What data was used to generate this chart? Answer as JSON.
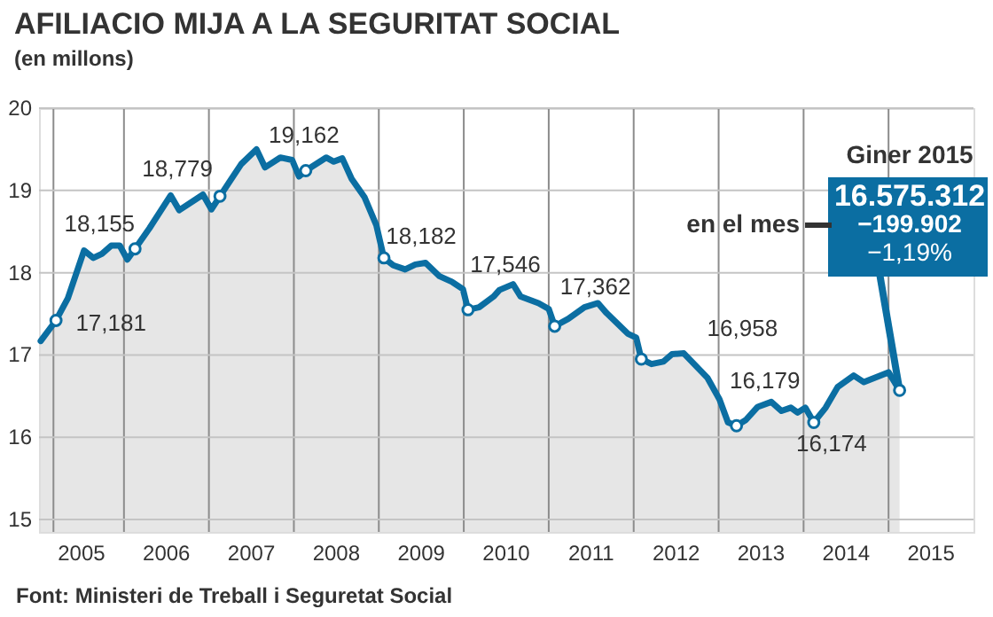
{
  "chart_data": {
    "type": "area",
    "title": "AFILIACIO MIJA A LA SEGURITAT SOCIAL",
    "subtitle": "(en millons)",
    "x": [
      2005.02,
      2005.2,
      2005.34,
      2005.53,
      2005.64,
      2005.74,
      2005.85,
      2005.95,
      2006.04,
      2006.13,
      2006.3,
      2006.55,
      2006.65,
      2006.93,
      2007.03,
      2007.13,
      2007.38,
      2007.56,
      2007.66,
      2007.84,
      2007.98,
      2008.06,
      2008.14,
      2008.38,
      2008.47,
      2008.57,
      2008.68,
      2008.83,
      2008.97,
      2009.06,
      2009.17,
      2009.31,
      2009.43,
      2009.55,
      2009.71,
      2009.86,
      2009.99,
      2010.05,
      2010.18,
      2010.35,
      2010.42,
      2010.58,
      2010.67,
      2010.88,
      2011.0,
      2011.07,
      2011.23,
      2011.42,
      2011.58,
      2011.68,
      2011.93,
      2012.03,
      2012.09,
      2012.21,
      2012.35,
      2012.45,
      2012.59,
      2012.87,
      2013.01,
      2013.11,
      2013.21,
      2013.32,
      2013.46,
      2013.62,
      2013.74,
      2013.85,
      2013.93,
      2014.02,
      2014.12,
      2014.26,
      2014.4,
      2014.59,
      2014.71,
      2015.0,
      2015.13
    ],
    "series": [
      {
        "color": "#0b6ea2",
        "values": [
          17.17,
          17.42,
          17.69,
          18.27,
          18.18,
          18.23,
          18.33,
          18.33,
          18.16,
          18.29,
          18.54,
          18.94,
          18.76,
          18.95,
          18.77,
          18.93,
          19.32,
          19.5,
          19.28,
          19.4,
          19.37,
          19.17,
          19.24,
          19.4,
          19.35,
          19.39,
          19.14,
          18.92,
          18.58,
          18.18,
          18.09,
          18.04,
          18.1,
          18.12,
          17.96,
          17.89,
          17.8,
          17.55,
          17.58,
          17.71,
          17.79,
          17.86,
          17.71,
          17.63,
          17.56,
          17.35,
          17.44,
          17.58,
          17.63,
          17.51,
          17.26,
          17.21,
          16.95,
          16.89,
          16.92,
          17.01,
          17.02,
          16.72,
          16.46,
          16.18,
          16.14,
          16.21,
          16.37,
          16.43,
          16.32,
          16.36,
          16.3,
          16.36,
          16.18,
          16.36,
          16.61,
          16.75,
          16.67,
          16.79,
          16.57
        ]
      }
    ],
    "xlim": [
      2005,
      2016
    ],
    "xticks": [
      {
        "value": 2005.5,
        "label": "2005"
      },
      {
        "value": 2006.5,
        "label": "2006"
      },
      {
        "value": 2007.5,
        "label": "2007"
      },
      {
        "value": 2008.5,
        "label": "2008"
      },
      {
        "value": 2009.5,
        "label": "2009"
      },
      {
        "value": 2010.5,
        "label": "2010"
      },
      {
        "value": 2011.5,
        "label": "2011"
      },
      {
        "value": 2012.5,
        "label": "2012"
      },
      {
        "value": 2013.5,
        "label": "2013"
      },
      {
        "value": 2014.5,
        "label": "2014"
      },
      {
        "value": 2015.5,
        "label": "2015"
      },
      {
        "value": 2005.17,
        "label": null
      },
      {
        "value": 2006,
        "label": null
      },
      {
        "value": 2007,
        "label": null
      },
      {
        "value": 2008,
        "label": null
      },
      {
        "value": 2009,
        "label": null
      },
      {
        "value": 2010,
        "label": null
      },
      {
        "value": 2011,
        "label": null
      },
      {
        "value": 2012,
        "label": null
      },
      {
        "value": 2013,
        "label": null
      },
      {
        "value": 2014,
        "label": null
      },
      {
        "value": 2015,
        "label": null
      }
    ],
    "ylim": [
      14.85,
      20
    ],
    "yticks": [
      15,
      16,
      17,
      18,
      19,
      20
    ],
    "grid": true,
    "annotations": [
      {
        "text": "17,181",
        "x": 2005.2,
        "y": 17.42
      },
      {
        "text": "18,155",
        "x": 2006.13,
        "y": 18.29
      },
      {
        "text": "18,779",
        "x": 2007.13,
        "y": 18.93
      },
      {
        "text": "19,162",
        "x": 2008.14,
        "y": 19.24
      },
      {
        "text": "18,182",
        "x": 2009.06,
        "y": 18.18
      },
      {
        "text": "17,546",
        "x": 2010.05,
        "y": 17.55
      },
      {
        "text": "17,362",
        "x": 2011.07,
        "y": 17.35
      },
      {
        "text": "16,958",
        "x": 2012.09,
        "y": 16.95
      },
      {
        "text": "16,179",
        "x": 2013.21,
        "y": 16.14
      },
      {
        "text": "16,174",
        "x": 2014.12,
        "y": 16.18
      },
      "Giner 2015",
      "16.575.312",
      "en el mes",
      "−199.902",
      {
        "text": "−1,19%",
        "x": 2015.13,
        "y": 16.57
      },
      "Font: Ministeri de Treball i Seguretat Social"
    ]
  }
}
